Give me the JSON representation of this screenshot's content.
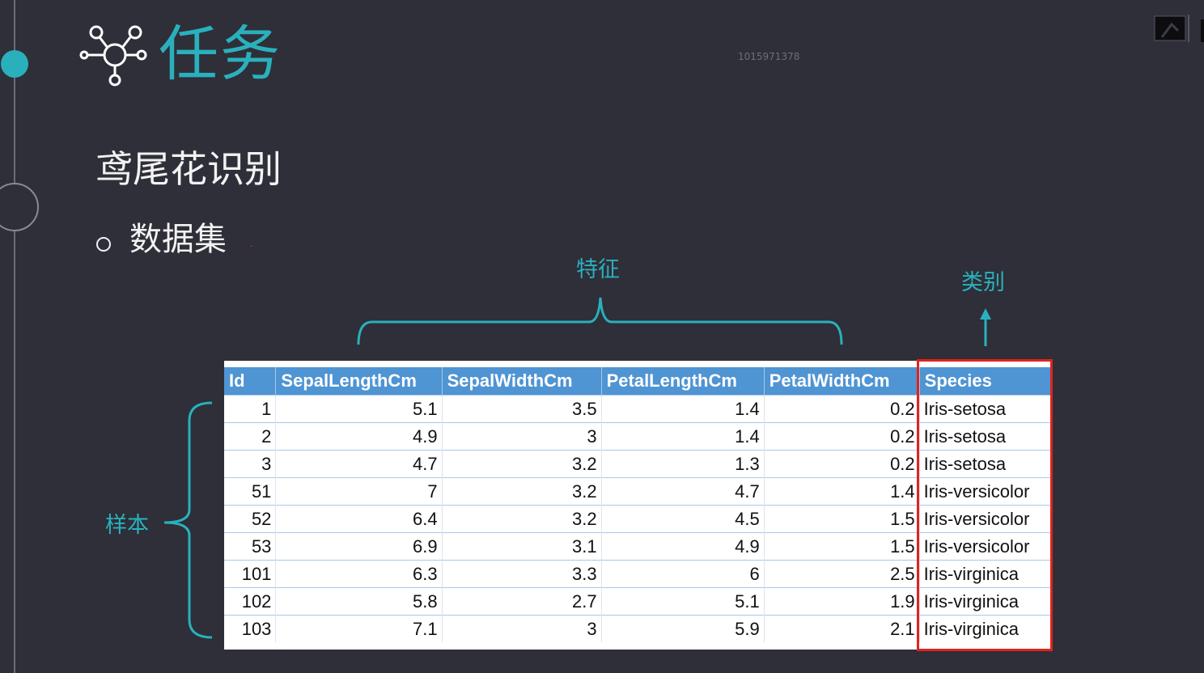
{
  "slide": {
    "title": "任务",
    "watermark": "1015971378",
    "subtitle": "鸢尾花识别",
    "bullet": "数据集",
    "tiny_mark": "-",
    "accent_color": "#2ab0bd",
    "highlight_color": "#e0231d",
    "header_color": "#4f94d3",
    "icons": [
      "hub-network-icon",
      "screen-share-icon"
    ]
  },
  "annotations": {
    "features": "特征",
    "class": "类别",
    "samples": "样本"
  },
  "table": {
    "headers": [
      "Id",
      "SepalLengthCm",
      "SepalWidthCm",
      "PetalLengthCm",
      "PetalWidthCm",
      "Species"
    ],
    "rows": [
      [
        "1",
        "5.1",
        "3.5",
        "1.4",
        "0.2",
        "Iris-setosa"
      ],
      [
        "2",
        "4.9",
        "3",
        "1.4",
        "0.2",
        "Iris-setosa"
      ],
      [
        "3",
        "4.7",
        "3.2",
        "1.3",
        "0.2",
        "Iris-setosa"
      ],
      [
        "51",
        "7",
        "3.2",
        "4.7",
        "1.4",
        "Iris-versicolor"
      ],
      [
        "52",
        "6.4",
        "3.2",
        "4.5",
        "1.5",
        "Iris-versicolor"
      ],
      [
        "53",
        "6.9",
        "3.1",
        "4.9",
        "1.5",
        "Iris-versicolor"
      ],
      [
        "101",
        "6.3",
        "3.3",
        "6",
        "2.5",
        "Iris-virginica"
      ],
      [
        "102",
        "5.8",
        "2.7",
        "5.1",
        "1.9",
        "Iris-virginica"
      ],
      [
        "103",
        "7.1",
        "3",
        "5.9",
        "2.1",
        "Iris-virginica"
      ]
    ]
  }
}
